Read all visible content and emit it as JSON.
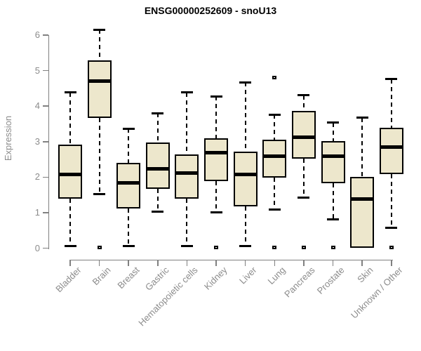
{
  "chart_data": {
    "type": "boxplot",
    "title": "ENSG00000252609 - snoU13",
    "xlabel": "",
    "ylabel": "Expression",
    "ylim": [
      0,
      6
    ],
    "yticks": [
      "0",
      "1",
      "2",
      "3",
      "4",
      "5",
      "6"
    ],
    "grid": false,
    "legend": false,
    "categories": [
      "Bladder",
      "Brain",
      "Breast",
      "Gastric",
      "Hematopoietic cells",
      "Kidney",
      "Liver",
      "Lung",
      "Pancreas",
      "Prostate",
      "Skin",
      "Unknown / Other"
    ],
    "series": [
      {
        "name": "Bladder",
        "whisker_low": 0.05,
        "q1": 1.4,
        "median": 2.08,
        "q3": 2.92,
        "whisker_high": 4.38,
        "outliers": []
      },
      {
        "name": "Brain",
        "whisker_low": 1.52,
        "q1": 3.66,
        "median": 4.7,
        "q3": 5.29,
        "whisker_high": 6.15,
        "outliers": [
          0.02
        ]
      },
      {
        "name": "Breast",
        "whisker_low": 0.05,
        "q1": 1.12,
        "median": 1.84,
        "q3": 2.4,
        "whisker_high": 3.37,
        "outliers": []
      },
      {
        "name": "Gastric",
        "whisker_low": 1.02,
        "q1": 1.68,
        "median": 2.24,
        "q3": 2.97,
        "whisker_high": 3.8,
        "outliers": []
      },
      {
        "name": "Hematopoietic cells",
        "whisker_low": 0.05,
        "q1": 1.4,
        "median": 2.11,
        "q3": 2.63,
        "whisker_high": 4.38,
        "outliers": []
      },
      {
        "name": "Kidney",
        "whisker_low": 1.0,
        "q1": 1.88,
        "median": 2.68,
        "q3": 3.1,
        "whisker_high": 4.28,
        "outliers": [
          0.02
        ]
      },
      {
        "name": "Liver",
        "whisker_low": 0.05,
        "q1": 1.18,
        "median": 2.08,
        "q3": 2.72,
        "whisker_high": 4.67,
        "outliers": []
      },
      {
        "name": "Lung",
        "whisker_low": 1.08,
        "q1": 1.99,
        "median": 2.59,
        "q3": 3.05,
        "whisker_high": 3.76,
        "outliers": [
          0.02,
          4.81
        ]
      },
      {
        "name": "Pancreas",
        "whisker_low": 1.43,
        "q1": 2.52,
        "median": 3.12,
        "q3": 3.86,
        "whisker_high": 4.31,
        "outliers": [
          0.02
        ]
      },
      {
        "name": "Prostate",
        "whisker_low": 0.82,
        "q1": 1.83,
        "median": 2.59,
        "q3": 3.01,
        "whisker_high": 3.53,
        "outliers": [
          0.02
        ]
      },
      {
        "name": "Skin",
        "whisker_low": 0.0,
        "q1": 0.0,
        "median": 1.38,
        "q3": 2.01,
        "whisker_high": 3.67,
        "outliers": []
      },
      {
        "name": "Unknown / Other",
        "whisker_low": 0.57,
        "q1": 2.09,
        "median": 2.85,
        "q3": 3.4,
        "whisker_high": 4.76,
        "outliers": [
          0.02
        ]
      }
    ],
    "colors": {
      "box_fill": "#EDE7CC",
      "box_border": "#000000",
      "median": "#000000",
      "whisker": "#000000",
      "axis": "#808080",
      "tick_label": "#8C8C8C",
      "title": "#000000",
      "outlier_fill": "#FFFFFF",
      "background": "#FFFFFF"
    }
  }
}
